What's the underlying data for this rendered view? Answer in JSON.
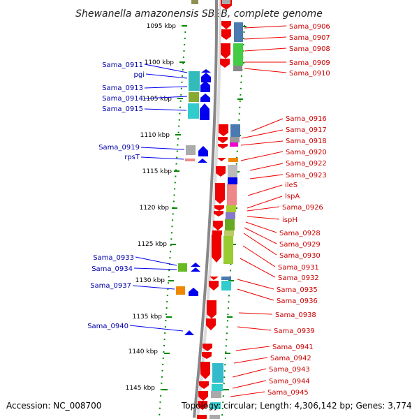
{
  "title": "Shewanella amazonensis SB2B, complete genome",
  "footer": {
    "accession": "Accession: NC_008700",
    "topology": "Topology: circular; Length: 4,306,142 bp; Genes: 3,774"
  },
  "ticks": [
    "1095 kbp",
    "1100 kbp",
    "1105 kbp",
    "1110 kbp",
    "1115 kbp",
    "1120 kbp",
    "1125 kbp",
    "1130 kbp",
    "1135 kbp",
    "1140 kbp",
    "1145 kbp"
  ],
  "left_genes": [
    "Sama_0911",
    "pgi",
    "Sama_0913",
    "Sama_0914",
    "Sama_0915",
    "Sama_0919",
    "rpsT",
    "Sama_0933",
    "Sama_0934",
    "Sama_0937",
    "Sama_0940"
  ],
  "right_genes": [
    "Sama_0906",
    "Sama_0907",
    "Sama_0908",
    "Sama_0909",
    "Sama_0910",
    "Sama_0916",
    "Sama_0917",
    "Sama_0918",
    "Sama_0920",
    "Sama_0922",
    "Sama_0923",
    "ileS",
    "lspA",
    "Sama_0926",
    "ispH",
    "Sama_0928",
    "Sama_0929",
    "Sama_0930",
    "Sama_0931",
    "Sama_0932",
    "Sama_0935",
    "Sama_0936",
    "Sama_0938",
    "Sama_0939",
    "Sama_0941",
    "Sama_0942",
    "Sama_0943",
    "Sama_0944",
    "Sama_0945"
  ],
  "colors": {
    "reverse_strand": "#ee0000",
    "forward_strand": "#0000ee",
    "backbone": "#888888",
    "ruler": "#008800"
  }
}
